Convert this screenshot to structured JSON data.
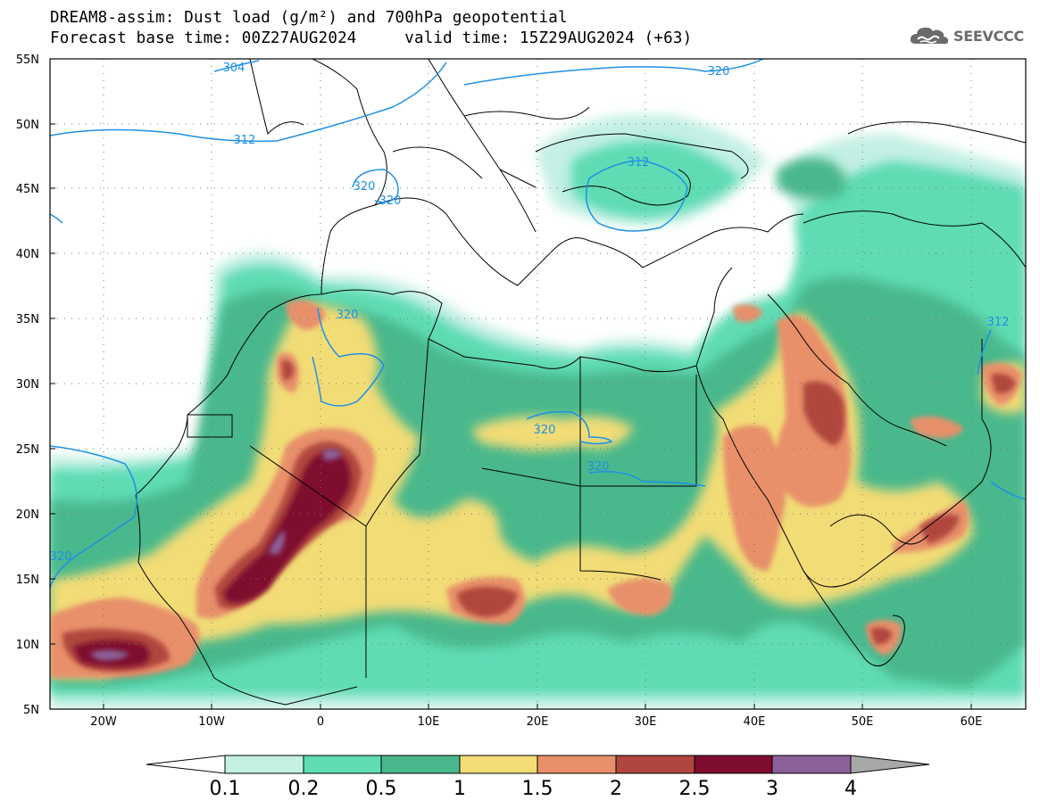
{
  "title": {
    "line1": "DREAM8-assim: Dust load (g/m²) and 700hPa geopotential",
    "line2": "Forecast base time: 00Z27AUG2024     valid time: 15Z29AUG2024 (+63)"
  },
  "logo": {
    "text": "SEEVCCC",
    "icon": "cloud-icon"
  },
  "map": {
    "lat_labels": [
      "55N",
      "50N",
      "45N",
      "40N",
      "35N",
      "30N",
      "25N",
      "20N",
      "15N",
      "10N",
      "5N"
    ],
    "lon_labels": [
      "20W",
      "10W",
      "0",
      "10E",
      "20E",
      "30E",
      "40E",
      "50E",
      "60E"
    ],
    "contour_labels": [
      "304",
      "312",
      "320",
      "320",
      "312",
      "320",
      "320",
      "320",
      "312",
      "320",
      "320"
    ]
  },
  "colorbar": {
    "labels": [
      "0.1",
      "0.2",
      "0.5",
      "1",
      "1.5",
      "2",
      "2.5",
      "3",
      "4"
    ],
    "colors": [
      "#c4f0e4",
      "#5fdcb4",
      "#48b88c",
      "#f2dc76",
      "#e8906a",
      "#b0463e",
      "#7e0c2e",
      "#8c6098",
      "#a8a8a8"
    ]
  },
  "colors": {
    "contour": "#1e90e6",
    "border": "#000000",
    "frame": "#000000"
  }
}
